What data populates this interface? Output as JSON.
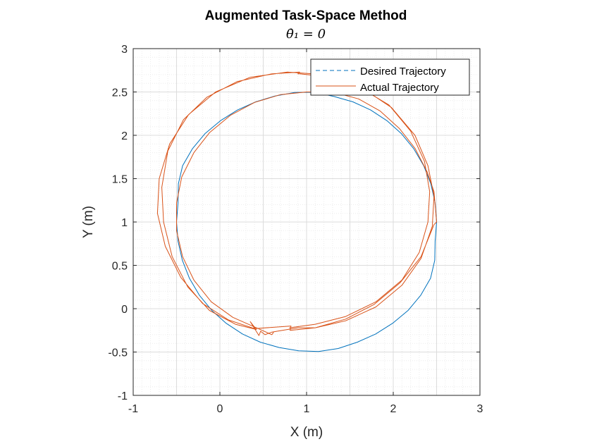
{
  "chart_data": {
    "type": "line",
    "title": "Augmented Task-Space Method",
    "subtitle": "θ̇₁ = 0",
    "xlabel": "X (m)",
    "ylabel": "Y (m)",
    "xlim": [
      -1,
      3
    ],
    "ylim": [
      -1,
      3
    ],
    "xticks": [
      -1,
      0,
      1,
      2,
      3
    ],
    "yticks": [
      -1,
      -0.5,
      0,
      0.5,
      1,
      1.5,
      2,
      2.5,
      3
    ],
    "xtick_labels": [
      "-1",
      "0",
      "1",
      "2",
      "3"
    ],
    "ytick_labels": [
      "-1",
      "-0.5",
      "0",
      "0.5",
      "1",
      "1.5",
      "2",
      "2.5",
      "3"
    ],
    "grid": true,
    "minor_grid": true,
    "legend_position": "top-right",
    "series": [
      {
        "name": "Desired Trajectory",
        "style": "dashed",
        "color": "#0072BD",
        "points": [
          [
            2.5,
            1.0
          ],
          [
            2.483,
            1.222
          ],
          [
            2.433,
            1.441
          ],
          [
            2.351,
            1.65
          ],
          [
            2.237,
            1.844
          ],
          [
            2.095,
            2.018
          ],
          [
            1.928,
            2.168
          ],
          [
            1.739,
            2.292
          ],
          [
            1.534,
            2.386
          ],
          [
            1.316,
            2.448
          ],
          [
            1.091,
            2.497
          ],
          [
            0.862,
            2.494
          ],
          [
            0.635,
            2.454
          ],
          [
            0.414,
            2.386
          ],
          [
            0.203,
            2.292
          ],
          [
            0.007,
            2.169
          ],
          [
            -0.173,
            2.018
          ],
          [
            -0.318,
            1.844
          ],
          [
            -0.43,
            1.65
          ],
          [
            -0.479,
            1.441
          ],
          [
            -0.483,
            1.222
          ],
          [
            -0.5,
            1.0
          ],
          [
            -0.483,
            0.778
          ],
          [
            -0.433,
            0.559
          ],
          [
            -0.351,
            0.35
          ],
          [
            -0.237,
            0.156
          ],
          [
            -0.095,
            -0.018
          ],
          [
            0.072,
            -0.168
          ],
          [
            0.261,
            -0.292
          ],
          [
            0.466,
            -0.386
          ],
          [
            0.684,
            -0.448
          ],
          [
            0.909,
            -0.486
          ],
          [
            1.138,
            -0.494
          ],
          [
            1.365,
            -0.459
          ],
          [
            1.586,
            -0.386
          ],
          [
            1.797,
            -0.292
          ],
          [
            1.993,
            -0.168
          ],
          [
            2.173,
            -0.018
          ],
          [
            2.318,
            0.156
          ],
          [
            2.43,
            0.35
          ],
          [
            2.479,
            0.559
          ],
          [
            2.483,
            0.778
          ],
          [
            2.5,
            1.0
          ]
        ]
      },
      {
        "name": "Actual Trajectory",
        "style": "solid",
        "color": "#D95319",
        "points": [
          [
            0.8,
            -0.22
          ],
          [
            1.1,
            -0.18
          ],
          [
            1.45,
            -0.09
          ],
          [
            1.8,
            0.08
          ],
          [
            2.1,
            0.33
          ],
          [
            2.3,
            0.65
          ],
          [
            2.4,
            1.0
          ],
          [
            2.42,
            1.35
          ],
          [
            2.36,
            1.7
          ],
          [
            2.2,
            2.05
          ],
          [
            1.95,
            2.35
          ],
          [
            1.6,
            2.56
          ],
          [
            1.2,
            2.68
          ],
          [
            0.92,
            2.71
          ],
          [
            0.9,
            2.71
          ],
          [
            0.92,
            2.73
          ],
          [
            0.6,
            2.71
          ],
          [
            0.2,
            2.62
          ],
          [
            -0.15,
            2.44
          ],
          [
            -0.42,
            2.18
          ],
          [
            -0.6,
            1.82
          ],
          [
            -0.67,
            1.4
          ],
          [
            -0.65,
            1.0
          ],
          [
            -0.55,
            0.6
          ],
          [
            -0.37,
            0.25
          ],
          [
            -0.12,
            -0.02
          ],
          [
            0.18,
            -0.18
          ],
          [
            0.42,
            -0.24
          ],
          [
            0.35,
            -0.15
          ],
          [
            0.45,
            -0.31
          ],
          [
            0.47,
            -0.26
          ],
          [
            0.52,
            -0.3
          ],
          [
            0.6,
            -0.27
          ],
          [
            0.72,
            -0.25
          ],
          [
            0.9,
            -0.22
          ],
          [
            1.1,
            -0.22
          ],
          [
            1.45,
            -0.14
          ],
          [
            1.8,
            0.02
          ],
          [
            2.1,
            0.27
          ],
          [
            2.32,
            0.58
          ],
          [
            2.45,
            0.95
          ],
          [
            2.47,
            1.3
          ],
          [
            2.4,
            1.65
          ],
          [
            2.25,
            2.0
          ],
          [
            1.98,
            2.32
          ],
          [
            1.62,
            2.56
          ],
          [
            1.2,
            2.7
          ],
          [
            0.78,
            2.73
          ],
          [
            0.35,
            2.67
          ],
          [
            -0.05,
            2.5
          ],
          [
            -0.36,
            2.24
          ],
          [
            -0.58,
            1.9
          ],
          [
            -0.7,
            1.5
          ],
          [
            -0.72,
            1.1
          ],
          [
            -0.63,
            0.72
          ],
          [
            -0.45,
            0.36
          ],
          [
            -0.2,
            0.06
          ],
          [
            0.1,
            -0.13
          ],
          [
            0.4,
            -0.23
          ],
          [
            0.82,
            -0.2
          ],
          [
            0.81,
            -0.25
          ],
          [
            1.1,
            -0.22
          ],
          [
            1.45,
            -0.12
          ],
          [
            1.78,
            0.05
          ],
          [
            2.08,
            0.3
          ],
          [
            2.32,
            0.6
          ],
          [
            2.47,
            0.97
          ],
          [
            2.5,
            1.0
          ],
          [
            2.47,
            1.35
          ],
          [
            2.39,
            1.58
          ],
          [
            2.25,
            1.85
          ],
          [
            2.07,
            2.08
          ],
          [
            1.85,
            2.28
          ],
          [
            1.6,
            2.42
          ],
          [
            1.3,
            2.5
          ],
          [
            1.0,
            2.5
          ],
          [
            0.7,
            2.47
          ],
          [
            0.4,
            2.38
          ],
          [
            0.12,
            2.23
          ],
          [
            -0.12,
            2.03
          ],
          [
            -0.3,
            1.8
          ],
          [
            -0.44,
            1.52
          ],
          [
            -0.5,
            1.22
          ],
          [
            -0.5,
            0.9
          ],
          [
            -0.43,
            0.6
          ],
          [
            -0.3,
            0.33
          ],
          [
            -0.1,
            0.08
          ],
          [
            0.15,
            -0.1
          ],
          [
            0.42,
            -0.22
          ],
          [
            0.6,
            -0.3
          ],
          [
            0.62,
            -0.27
          ]
        ]
      }
    ]
  }
}
